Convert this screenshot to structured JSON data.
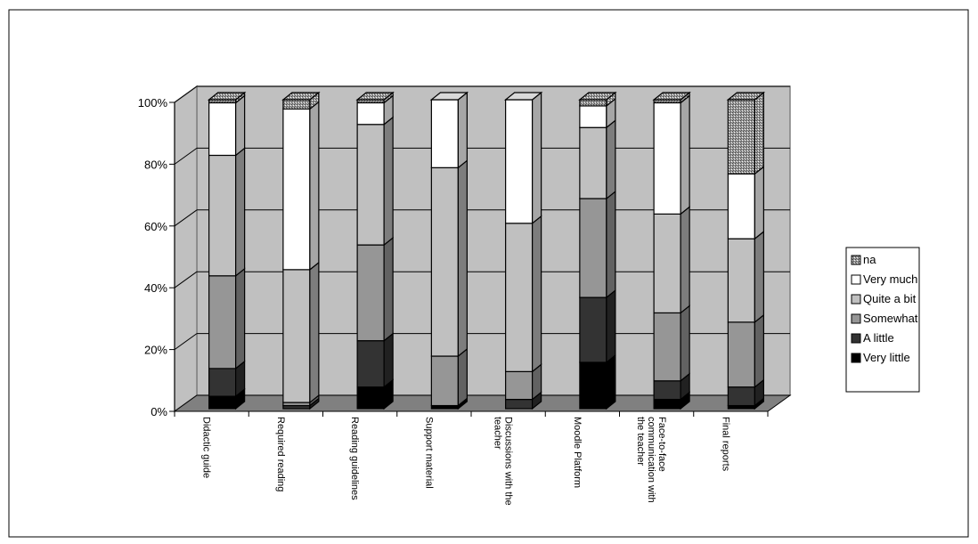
{
  "chart_data": {
    "type": "bar",
    "stacked": true,
    "percent_stacked": true,
    "three_d": true,
    "categories": [
      "Didactic guide",
      "Required reading",
      "Reading guidelines",
      "Support material",
      "Discussions with the teacher",
      "Moodle Platform",
      "Face-to-face communication with the teacher",
      "Final reports"
    ],
    "series": [
      {
        "name": "Very little",
        "values": [
          4,
          0,
          7,
          1,
          0,
          15,
          3,
          1
        ],
        "color": "#000000"
      },
      {
        "name": "A little",
        "values": [
          9,
          1,
          15,
          0,
          3,
          21,
          6,
          6
        ],
        "color": "#333333"
      },
      {
        "name": "Somewhat",
        "values": [
          30,
          1,
          31,
          16,
          9,
          32,
          22,
          21
        ],
        "color": "#969696"
      },
      {
        "name": "Quite a bit",
        "values": [
          39,
          43,
          39,
          61,
          48,
          23,
          32,
          27
        ],
        "color": "#c0c0c0"
      },
      {
        "name": "Very much",
        "values": [
          17,
          52,
          7,
          22,
          40,
          7,
          36,
          21
        ],
        "color": "#ffffff"
      },
      {
        "name": "na",
        "values": [
          1,
          3,
          1,
          0,
          0,
          2,
          1,
          24
        ],
        "color": "#808080"
      }
    ],
    "y_ticks": [
      "0%",
      "20%",
      "40%",
      "60%",
      "80%",
      "100%"
    ],
    "ylim": [
      0,
      100
    ],
    "grid": true,
    "legend_position": "right",
    "title": "",
    "xlabel": "",
    "ylabel": ""
  },
  "legend_order": [
    "na",
    "Very much",
    "Quite a bit",
    "Somewhat",
    "A little",
    "Very little"
  ],
  "category_label_lines": [
    [
      "Didactic guide"
    ],
    [
      "Required reading"
    ],
    [
      "Reading guidelines"
    ],
    [
      "Support material"
    ],
    [
      "Discussions with the",
      "teacher"
    ],
    [
      "Moodle Platform"
    ],
    [
      "Face-to-face",
      "communication with",
      "the teacher"
    ],
    [
      "Final reports"
    ]
  ]
}
